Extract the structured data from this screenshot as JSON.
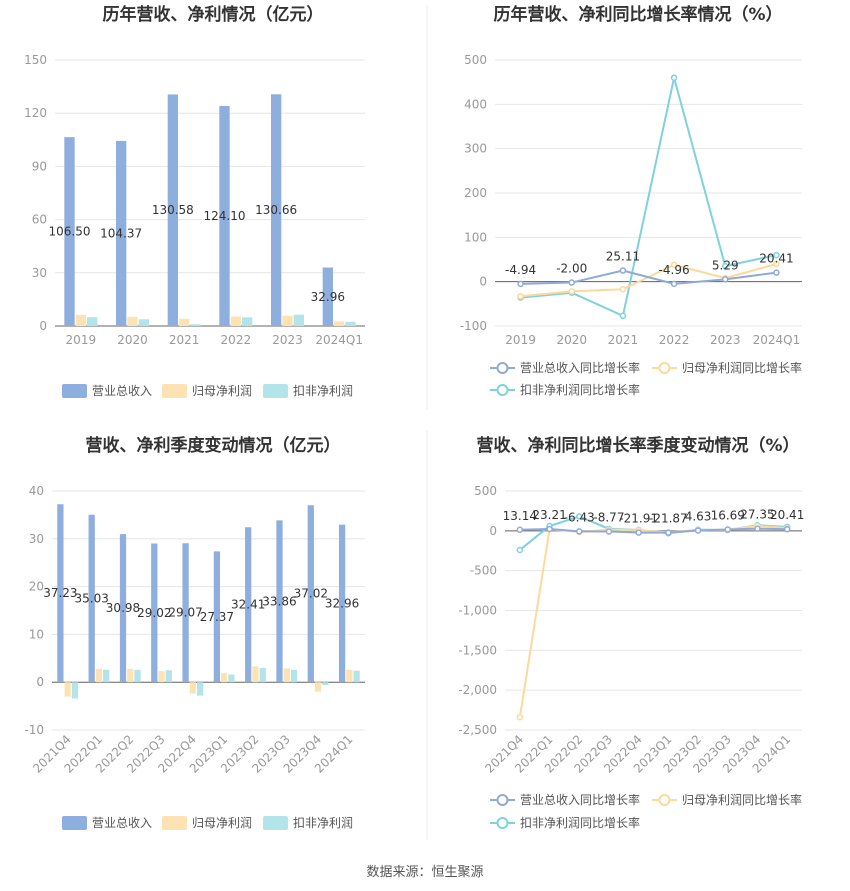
{
  "source": "数据来源：恒生聚源",
  "colors": {
    "revenue": "#8eaedd",
    "net_profit": "#fde3b4",
    "deducted_profit": "#b3e4ea",
    "rev_growth_line": "#8fa9da",
    "np_growth_line": "#fdd99a",
    "dp_growth_line": "#7fd2dc"
  },
  "chart_data": [
    {
      "id": "annual-bar",
      "type": "bar",
      "title": "历年营收、净利情况（亿元）",
      "categories": [
        "2019",
        "2020",
        "2021",
        "2022",
        "2023",
        "2024Q1"
      ],
      "series": [
        {
          "name": "营业总收入",
          "values": [
            106.5,
            104.37,
            130.58,
            124.1,
            130.66,
            32.96
          ]
        },
        {
          "name": "归母净利润",
          "values": [
            6.3,
            5.2,
            4.1,
            5.4,
            5.8,
            2.6
          ]
        },
        {
          "name": "扣非净利润",
          "values": [
            5.0,
            3.8,
            1.0,
            4.9,
            6.4,
            2.4
          ]
        }
      ],
      "data_labels": [
        "106.50",
        "104.37",
        "130.58",
        "124.10",
        "130.66",
        "32.96"
      ],
      "ylim": [
        0,
        150
      ],
      "yticks": [
        "0",
        "30",
        "60",
        "90",
        "120",
        "150"
      ],
      "grid": true,
      "legend": "bottom"
    },
    {
      "id": "annual-growth",
      "type": "line",
      "title": "历年营收、净利同比增长率情况（%）",
      "categories": [
        "2019",
        "2020",
        "2021",
        "2022",
        "2023",
        "2024Q1"
      ],
      "series": [
        {
          "name": "营业总收入同比增长率",
          "values": [
            -4.94,
            -2.0,
            25.11,
            -4.96,
            5.29,
            20.41
          ]
        },
        {
          "name": "归母净利润同比增长率",
          "values": [
            -33,
            -22,
            -17,
            38,
            8,
            40
          ]
        },
        {
          "name": "扣非净利润同比增长率",
          "values": [
            -36,
            -25,
            -77,
            460,
            35,
            60
          ]
        }
      ],
      "data_labels": [
        "-4.94",
        "-2.00",
        "25.11",
        "-4.96",
        "5.29",
        "20.41"
      ],
      "ylim": [
        -100,
        500
      ],
      "yticks": [
        "-100",
        "0",
        "100",
        "200",
        "300",
        "400",
        "500"
      ],
      "grid": true,
      "legend": "bottom"
    },
    {
      "id": "quarter-bar",
      "type": "bar",
      "title": "营收、净利季度变动情况（亿元）",
      "categories": [
        "2021Q4",
        "2022Q1",
        "2022Q2",
        "2022Q3",
        "2022Q4",
        "2023Q1",
        "2023Q2",
        "2023Q3",
        "2023Q4",
        "2024Q1"
      ],
      "series": [
        {
          "name": "营业总收入",
          "values": [
            37.23,
            35.03,
            30.98,
            29.02,
            29.07,
            27.37,
            32.41,
            33.86,
            37.02,
            32.96
          ]
        },
        {
          "name": "归母净利润",
          "values": [
            -3.0,
            2.8,
            2.8,
            2.3,
            -2.4,
            1.9,
            3.3,
            2.9,
            -2.0,
            2.6
          ]
        },
        {
          "name": "扣非净利润",
          "values": [
            -3.4,
            2.6,
            2.6,
            2.5,
            -2.8,
            1.6,
            3.0,
            2.6,
            -0.6,
            2.4
          ]
        }
      ],
      "data_labels": [
        "37.23",
        "35.03",
        "30.98",
        "29.02",
        "29.07",
        "27.37",
        "32.41",
        "33.86",
        "37.02",
        "32.96"
      ],
      "ylim": [
        -10,
        40
      ],
      "yticks": [
        "-10",
        "0",
        "10",
        "20",
        "30",
        "40"
      ],
      "grid": true,
      "legend": "bottom"
    },
    {
      "id": "quarter-growth",
      "type": "line",
      "title": "营收、净利同比增长率季度变动情况（%）",
      "categories": [
        "2021Q4",
        "2022Q1",
        "2022Q2",
        "2022Q3",
        "2022Q4",
        "2023Q1",
        "2023Q2",
        "2023Q3",
        "2023Q4",
        "2024Q1"
      ],
      "series": [
        {
          "name": "营业总收入同比增长率",
          "values": [
            13.14,
            23.21,
            -6.43,
            -8.77,
            -21.91,
            -21.87,
            4.63,
            16.69,
            27.35,
            20.41
          ]
        },
        {
          "name": "归母净利润同比增长率",
          "values": [
            -2340,
            20,
            -15,
            15,
            5,
            -20,
            10,
            15,
            60,
            35
          ]
        },
        {
          "name": "扣非净利润同比增长率",
          "values": [
            -240,
            60,
            180,
            25,
            10,
            -30,
            15,
            10,
            70,
            50
          ]
        }
      ],
      "data_labels": [
        "13.14",
        "23.21",
        "-6.43",
        "-8.77",
        "-21.91",
        "-21.87",
        "4.63",
        "16.69",
        "27.35",
        "20.41"
      ],
      "ylim": [
        -2500,
        500
      ],
      "yticks": [
        "-2,500",
        "-2,000",
        "-1,500",
        "-1,000",
        "-500",
        "0",
        "500"
      ],
      "grid": true,
      "legend": "bottom"
    }
  ]
}
